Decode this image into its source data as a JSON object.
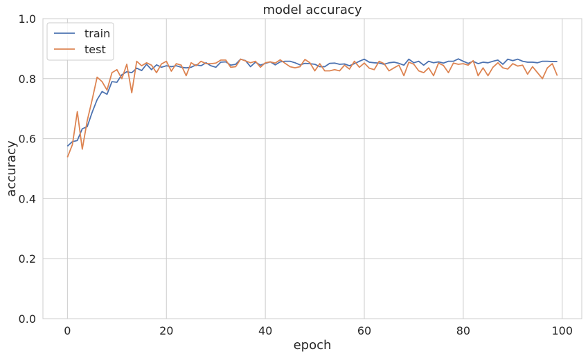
{
  "chart_data": {
    "type": "line",
    "title": "model accuracy",
    "xlabel": "epoch",
    "ylabel": "accuracy",
    "xlim": [
      -4.95,
      103.95
    ],
    "ylim": [
      0,
      1
    ],
    "xticks": [
      0,
      20,
      40,
      60,
      80,
      100
    ],
    "yticks": [
      0.0,
      0.2,
      0.4,
      0.6,
      0.8,
      1.0
    ],
    "xtick_labels": [
      "0",
      "20",
      "40",
      "60",
      "80",
      "100"
    ],
    "ytick_labels": [
      "0.0",
      "0.2",
      "0.4",
      "0.6",
      "0.8",
      "1.0"
    ],
    "grid": true,
    "legend_position": "top-left",
    "series": [
      {
        "name": "train",
        "color": "#4c72b0",
        "values": [
          0.575,
          0.59,
          0.594,
          0.633,
          0.64,
          0.688,
          0.73,
          0.757,
          0.748,
          0.79,
          0.788,
          0.813,
          0.823,
          0.82,
          0.835,
          0.827,
          0.848,
          0.83,
          0.846,
          0.838,
          0.843,
          0.84,
          0.843,
          0.838,
          0.836,
          0.838,
          0.846,
          0.843,
          0.853,
          0.843,
          0.838,
          0.855,
          0.856,
          0.845,
          0.848,
          0.865,
          0.86,
          0.84,
          0.855,
          0.845,
          0.851,
          0.856,
          0.846,
          0.856,
          0.858,
          0.858,
          0.853,
          0.846,
          0.851,
          0.85,
          0.848,
          0.84,
          0.84,
          0.851,
          0.852,
          0.848,
          0.849,
          0.843,
          0.85,
          0.858,
          0.865,
          0.855,
          0.853,
          0.852,
          0.848,
          0.853,
          0.855,
          0.851,
          0.845,
          0.865,
          0.853,
          0.858,
          0.845,
          0.858,
          0.853,
          0.856,
          0.852,
          0.858,
          0.858,
          0.866,
          0.858,
          0.851,
          0.858,
          0.85,
          0.855,
          0.853,
          0.858,
          0.862,
          0.848,
          0.865,
          0.86,
          0.865,
          0.858,
          0.855,
          0.855,
          0.853,
          0.858,
          0.858,
          0.857,
          0.857
        ]
      },
      {
        "name": "test",
        "color": "#dd8452",
        "values": [
          0.538,
          0.58,
          0.69,
          0.565,
          0.66,
          0.73,
          0.805,
          0.79,
          0.762,
          0.82,
          0.83,
          0.8,
          0.848,
          0.753,
          0.858,
          0.843,
          0.853,
          0.845,
          0.82,
          0.849,
          0.858,
          0.825,
          0.85,
          0.845,
          0.81,
          0.853,
          0.843,
          0.858,
          0.85,
          0.85,
          0.852,
          0.862,
          0.862,
          0.838,
          0.84,
          0.865,
          0.859,
          0.853,
          0.858,
          0.838,
          0.853,
          0.856,
          0.852,
          0.863,
          0.851,
          0.84,
          0.836,
          0.84,
          0.864,
          0.853,
          0.826,
          0.85,
          0.826,
          0.826,
          0.83,
          0.826,
          0.845,
          0.832,
          0.858,
          0.838,
          0.852,
          0.835,
          0.83,
          0.858,
          0.85,
          0.826,
          0.836,
          0.845,
          0.81,
          0.855,
          0.848,
          0.826,
          0.82,
          0.836,
          0.81,
          0.852,
          0.844,
          0.82,
          0.852,
          0.848,
          0.85,
          0.845,
          0.86,
          0.81,
          0.836,
          0.81,
          0.838,
          0.853,
          0.836,
          0.832,
          0.85,
          0.842,
          0.845,
          0.815,
          0.84,
          0.82,
          0.8,
          0.836,
          0.85,
          0.81
        ]
      }
    ]
  }
}
